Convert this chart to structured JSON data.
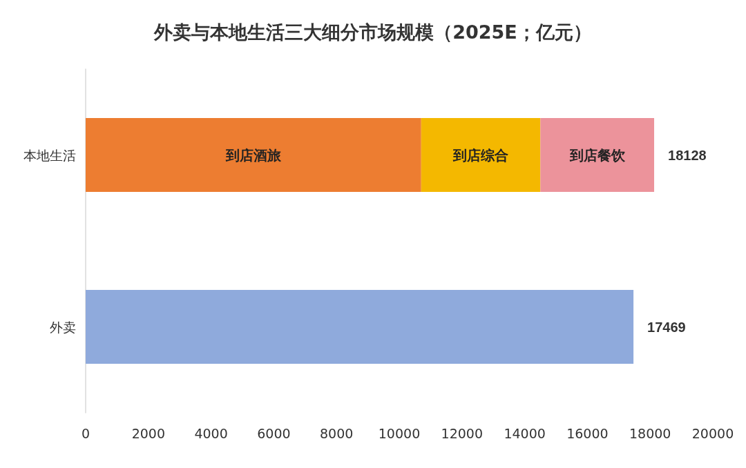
{
  "chart_data": {
    "type": "bar",
    "title": "外卖与本地生活三大细分市场规模（2025E；亿元）",
    "orientation": "horizontal",
    "stacked": true,
    "categories": [
      "本地生活",
      "外卖"
    ],
    "series": [
      {
        "name": "到店酒旅",
        "color": "#ed7d31",
        "values": [
          10700,
          null
        ]
      },
      {
        "name": "到店综合",
        "color": "#f4b800",
        "values": [
          3800,
          null
        ]
      },
      {
        "name": "到店餐饮",
        "color": "#ec939b",
        "values": [
          3628,
          null
        ]
      },
      {
        "color": "#8faadc",
        "values": [
          null,
          17469
        ]
      }
    ],
    "totals": [
      "18128",
      "17469"
    ],
    "xlim": [
      0,
      20000
    ],
    "xticks": [
      0,
      2000,
      4000,
      6000,
      8000,
      10000,
      12000,
      14000,
      16000,
      18000,
      20000
    ],
    "grid": false,
    "legend": false
  }
}
